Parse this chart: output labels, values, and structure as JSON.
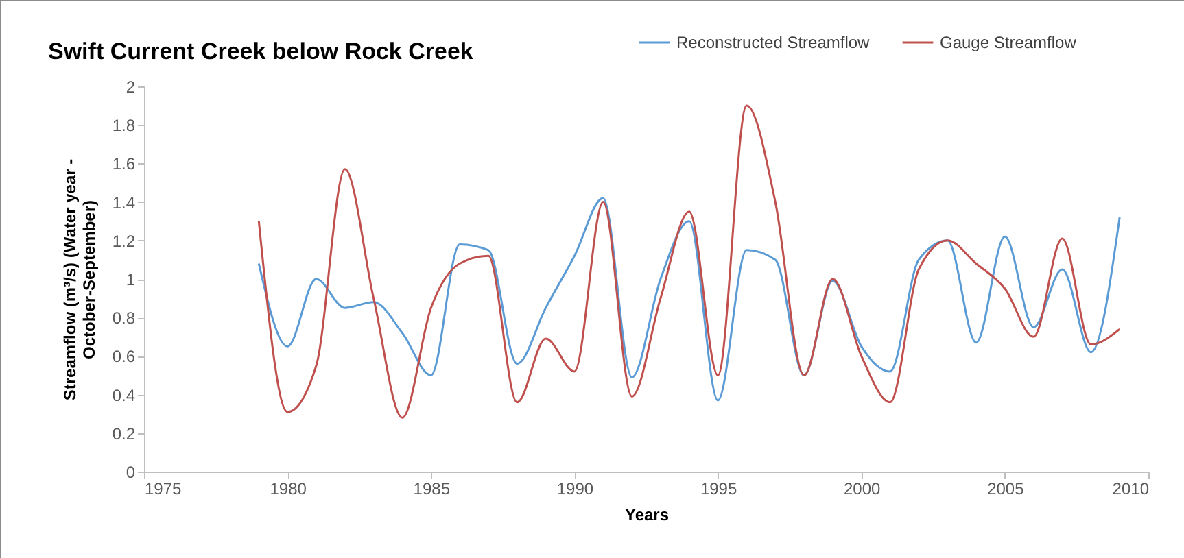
{
  "chart_data": {
    "type": "line",
    "title": "Swift Current Creek below Rock Creek",
    "xlabel": "Years",
    "ylabel": "Streamflow (m³/s) (Water year - October-September)",
    "x": [
      1979,
      1980,
      1981,
      1982,
      1983,
      1984,
      1985,
      1986,
      1987,
      1988,
      1989,
      1990,
      1991,
      1992,
      1993,
      1994,
      1995,
      1996,
      1997,
      1998,
      1999,
      2000,
      2001,
      2002,
      2003,
      2004,
      2005,
      2006,
      2007,
      2008,
      2009
    ],
    "series": [
      {
        "name": "Reconstructed Streamflow",
        "color": "#5b9bd5",
        "values": [
          1.08,
          0.65,
          1.0,
          0.85,
          0.88,
          0.72,
          0.5,
          1.18,
          1.15,
          0.56,
          0.85,
          1.12,
          1.42,
          0.49,
          1.0,
          1.3,
          0.37,
          1.15,
          1.1,
          0.5,
          0.99,
          0.65,
          0.52,
          1.1,
          1.2,
          0.67,
          1.22,
          0.75,
          1.05,
          0.62,
          1.32
        ]
      },
      {
        "name": "Gauge Streamflow",
        "color": "#c0504d",
        "values": [
          1.3,
          0.31,
          0.55,
          1.57,
          0.9,
          0.28,
          0.85,
          1.08,
          1.12,
          0.36,
          0.69,
          0.52,
          1.4,
          0.39,
          0.9,
          1.35,
          0.5,
          1.9,
          1.4,
          0.5,
          1.0,
          0.6,
          0.36,
          1.05,
          1.2,
          1.08,
          0.95,
          0.7,
          1.21,
          0.66,
          0.74
        ]
      }
    ],
    "xlim": [
      1975,
      2010
    ],
    "xticks": [
      1975,
      1980,
      1985,
      1990,
      1995,
      2000,
      2005,
      2010
    ],
    "ylim": [
      0,
      2
    ],
    "yticks": [
      0,
      0.2,
      0.4,
      0.6,
      0.8,
      1,
      1.2,
      1.4,
      1.6,
      1.8,
      2
    ],
    "grid": false,
    "legend": "top right",
    "marker": "none",
    "line_style": "solid"
  }
}
